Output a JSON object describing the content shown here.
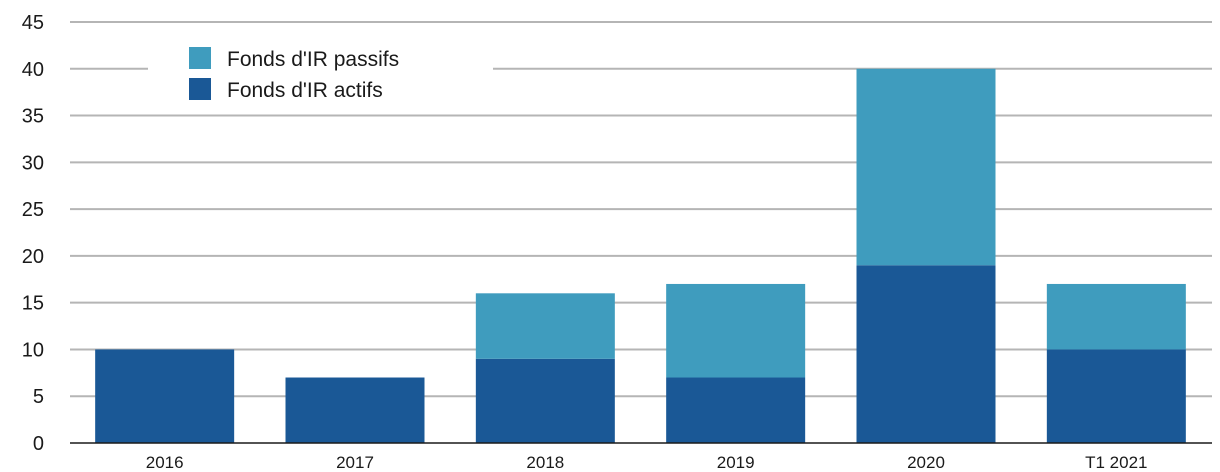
{
  "chart_data": {
    "type": "bar",
    "stacked": true,
    "categories": [
      "2016",
      "2017",
      "2018",
      "2019",
      "2020",
      "T1 2021"
    ],
    "series": [
      {
        "name": "Fonds d'IR actifs",
        "values": [
          10,
          7,
          9,
          7,
          19,
          10
        ],
        "color": "#1a5896"
      },
      {
        "name": "Fonds d'IR passifs",
        "values": [
          0,
          0,
          7,
          10,
          21,
          7
        ],
        "color": "#3f9cbe"
      }
    ],
    "title": "",
    "xlabel": "",
    "ylabel": "",
    "ylim": [
      0,
      45
    ],
    "yticks": [
      0,
      5,
      10,
      15,
      20,
      25,
      30,
      35,
      40,
      45
    ],
    "grid": true,
    "legend_position": "top-left",
    "legend_order": [
      "Fonds d'IR passifs",
      "Fonds d'IR actifs"
    ]
  }
}
